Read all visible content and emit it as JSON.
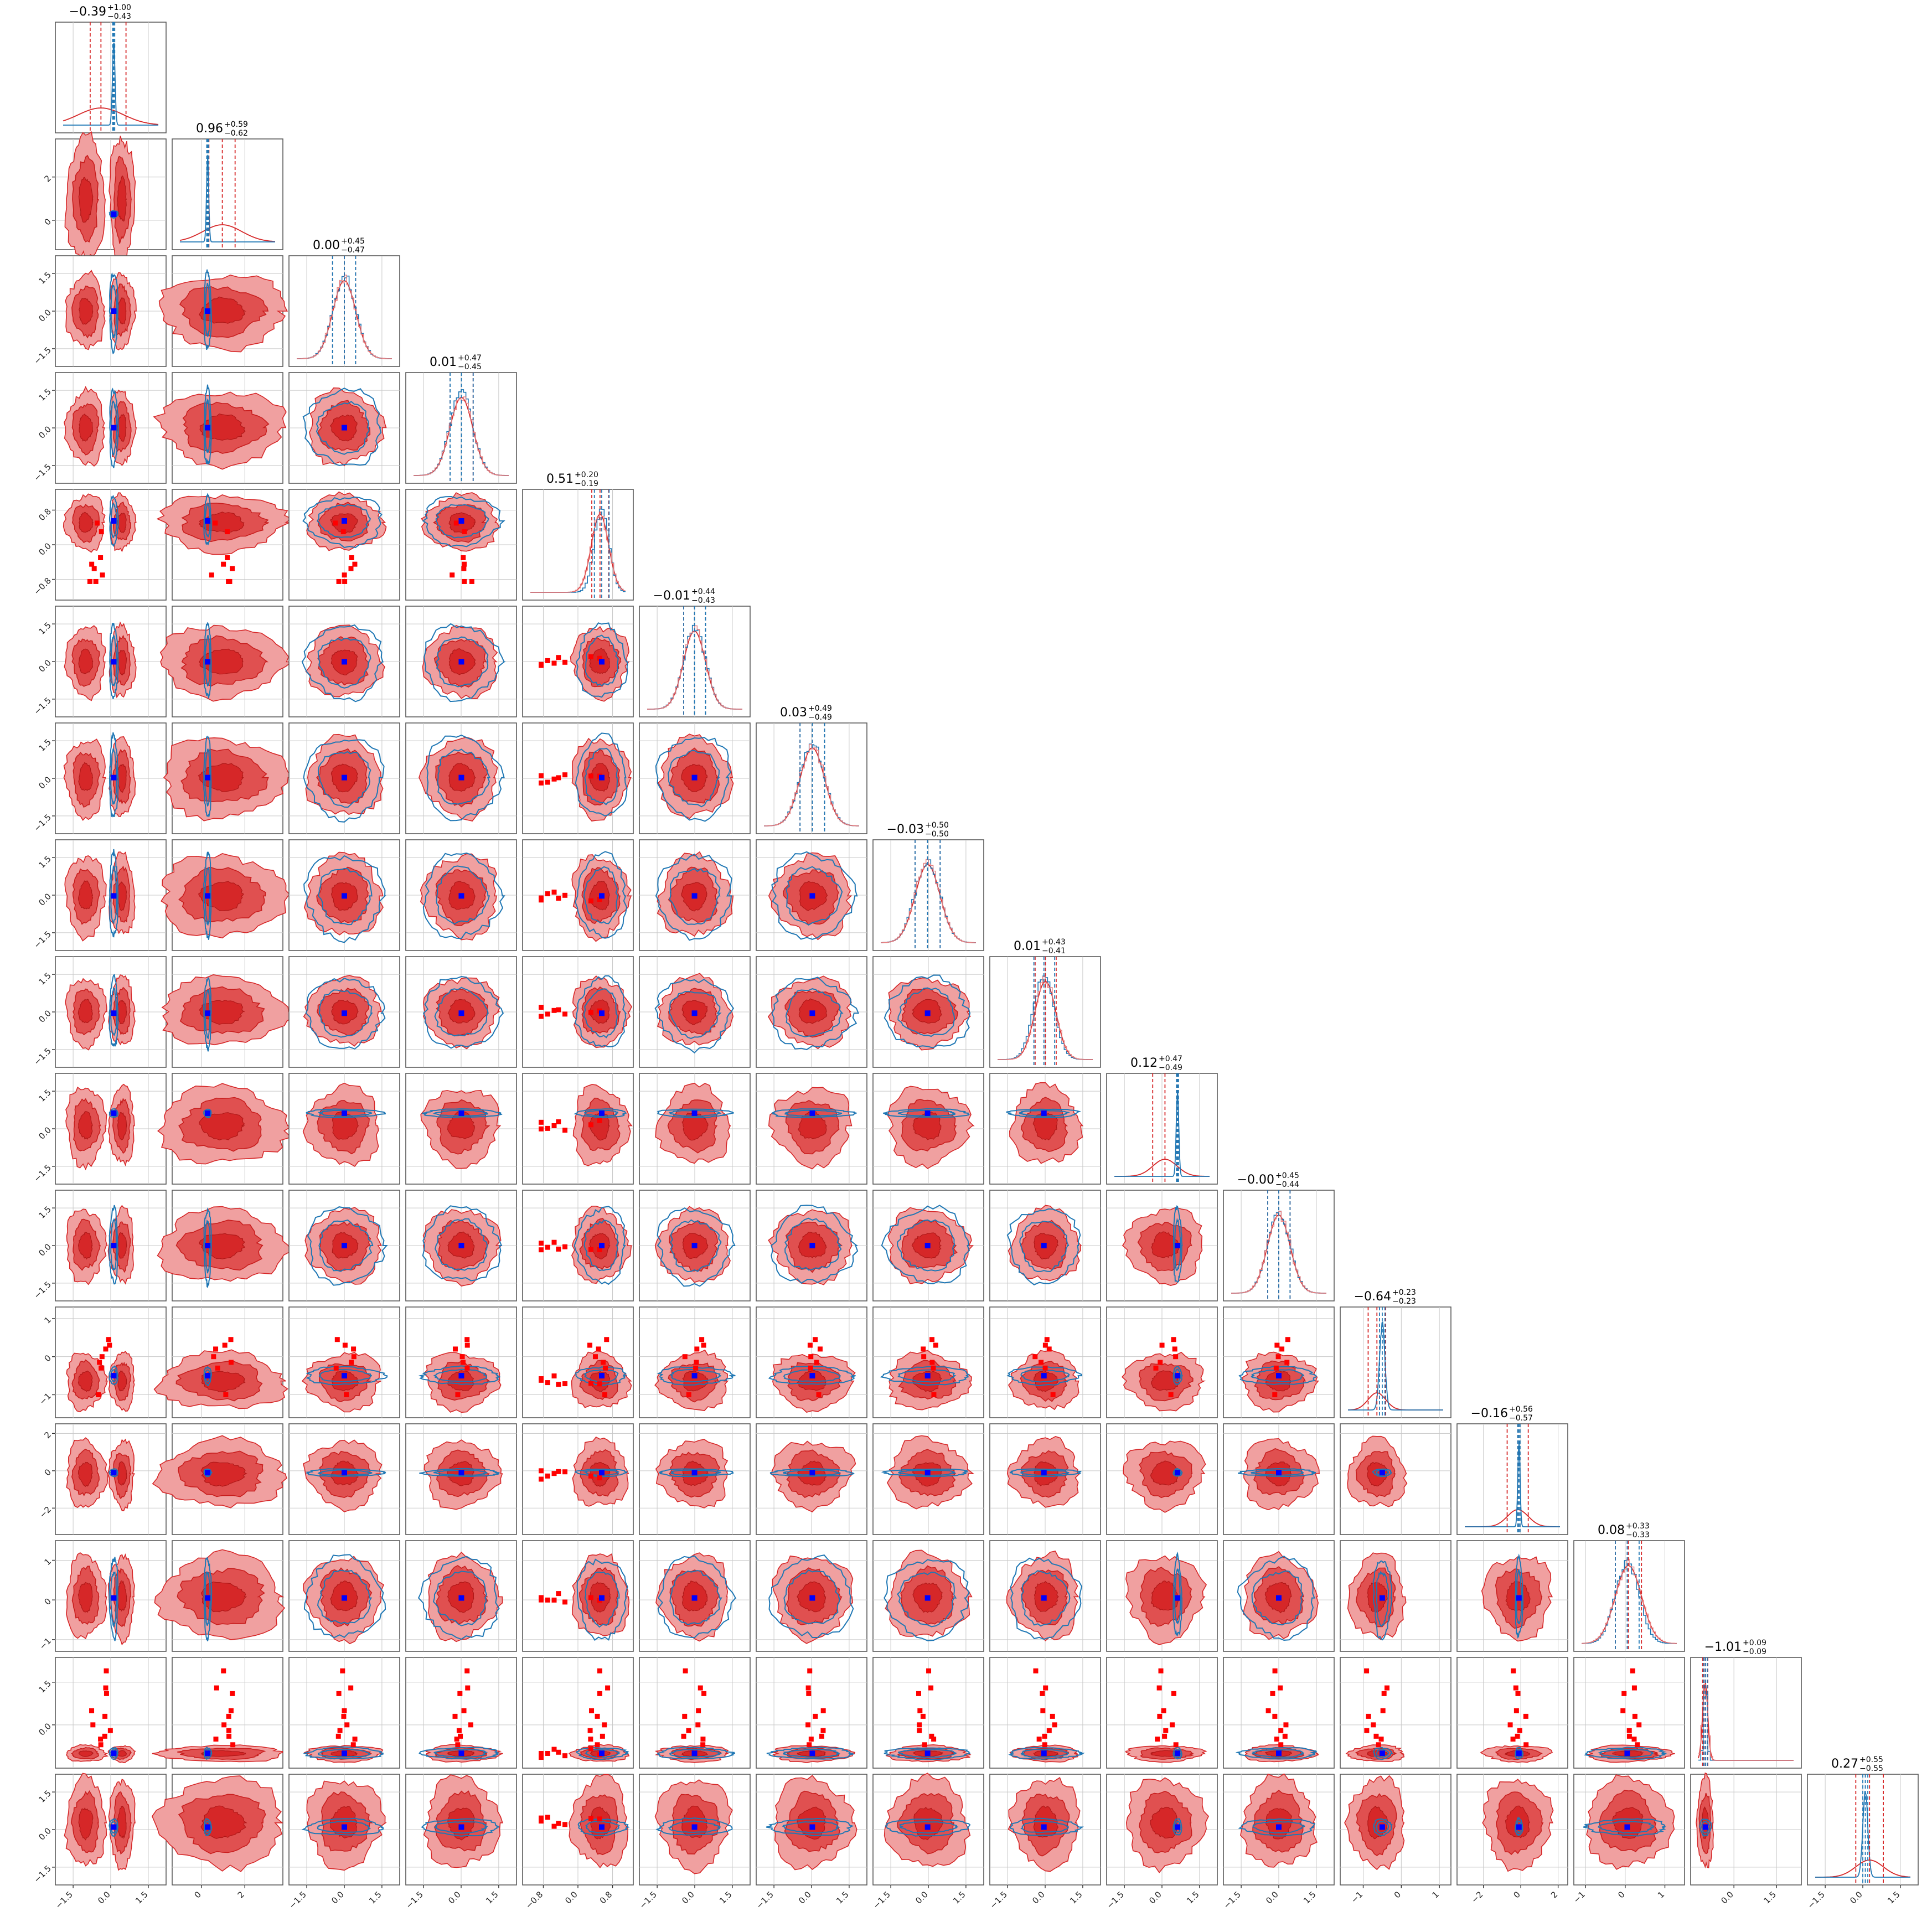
{
  "chart_data": {
    "type": "corner",
    "grid": true,
    "n_params": 16,
    "colors": {
      "posterior_red": "#d62728",
      "posterior_red_fill": "#f0a0a0",
      "posterior_blue": "#1f77b4",
      "truth_marker": "#0000ff",
      "outlier_marker": "#ff0000",
      "quantile_line_red": "#d62728",
      "quantile_line_blue": "#1f77b4"
    },
    "params": [
      {
        "median": -0.39,
        "plus": 1.0,
        "minus": 0.43,
        "title_median": "−0.39",
        "title_plus": "+1.00",
        "title_minus": "−0.43",
        "red": {
          "center": -0.39,
          "sd": 0.9,
          "bimodal": [
            -1.0,
            0.2
          ]
        },
        "blue": {
          "center": 0.12,
          "sd": 0.05
        },
        "quantiles_red": [
          -0.82,
          -0.39,
          0.61
        ],
        "quantiles_blue": [
          0.08,
          0.12,
          0.16
        ],
        "range": [
          -1.9,
          1.9
        ],
        "ticks": [
          "−1.5",
          "0.0",
          "1.5"
        ],
        "tick_values": [
          -1.5,
          0.0,
          1.5
        ]
      },
      {
        "median": 0.96,
        "plus": 0.59,
        "minus": 0.62,
        "title_median": "0.96",
        "title_plus": "+0.59",
        "title_minus": "−0.62",
        "red": {
          "center": 0.96,
          "sd": 0.9
        },
        "blue": {
          "center": 0.28,
          "sd": 0.05
        },
        "quantiles_red": [
          0.34,
          0.96,
          1.55
        ],
        "quantiles_blue": [
          0.24,
          0.28,
          0.32
        ],
        "range": [
          -1.0,
          3.4
        ],
        "ticks": [
          "0",
          "2"
        ],
        "tick_values": [
          0,
          2
        ]
      },
      {
        "median": 0.0,
        "plus": 0.45,
        "minus": 0.47,
        "title_median": "0.00",
        "title_plus": "+0.45",
        "title_minus": "−0.47",
        "red": {
          "center": 0.0,
          "sd": 0.46
        },
        "blue": {
          "center": 0.0,
          "sd": 0.46
        },
        "quantiles_red": [
          -0.47,
          0.0,
          0.45
        ],
        "quantiles_blue": [
          -0.47,
          0.0,
          0.45
        ],
        "range": [
          -1.9,
          1.9
        ],
        "ticks": [
          "−1.5",
          "0.0",
          "1.5"
        ],
        "tick_values": [
          -1.5,
          0.0,
          1.5
        ]
      },
      {
        "median": 0.01,
        "plus": 0.47,
        "minus": 0.45,
        "title_median": "0.01",
        "title_plus": "+0.47",
        "title_minus": "−0.45",
        "red": {
          "center": 0.01,
          "sd": 0.46
        },
        "blue": {
          "center": 0.01,
          "sd": 0.46
        },
        "quantiles_red": [
          -0.44,
          0.01,
          0.48
        ],
        "quantiles_blue": [
          -0.44,
          0.01,
          0.48
        ],
        "range": [
          -1.9,
          1.9
        ],
        "ticks": [
          "−1.5",
          "0.0",
          "1.5"
        ],
        "tick_values": [
          -1.5,
          0.0,
          1.5
        ]
      },
      {
        "median": 0.51,
        "plus": 0.2,
        "minus": 0.19,
        "title_median": "0.51",
        "title_plus": "+0.20",
        "title_minus": "−0.19",
        "red": {
          "center": 0.51,
          "sd": 0.2
        },
        "blue": {
          "center": 0.55,
          "sd": 0.17
        },
        "quantiles_red": [
          0.32,
          0.51,
          0.71
        ],
        "quantiles_blue": [
          0.38,
          0.55,
          0.72
        ],
        "range": [
          -1.1,
          1.1
        ],
        "ticks": [
          "−0.8",
          "0.0",
          "0.8"
        ],
        "tick_values": [
          -0.8,
          0.0,
          0.8
        ]
      },
      {
        "median": -0.01,
        "plus": 0.44,
        "minus": 0.43,
        "title_median": "−0.01",
        "title_plus": "+0.44",
        "title_minus": "−0.43",
        "red": {
          "center": -0.01,
          "sd": 0.44
        },
        "blue": {
          "center": -0.01,
          "sd": 0.44
        },
        "quantiles_red": [
          -0.44,
          -0.01,
          0.43
        ],
        "quantiles_blue": [
          -0.44,
          -0.01,
          0.43
        ],
        "range": [
          -1.9,
          1.9
        ],
        "ticks": [
          "−1.5",
          "0.0",
          "1.5"
        ],
        "tick_values": [
          -1.5,
          0.0,
          1.5
        ]
      },
      {
        "median": 0.03,
        "plus": 0.49,
        "minus": 0.49,
        "title_median": "0.03",
        "title_plus": "+0.49",
        "title_minus": "−0.49",
        "red": {
          "center": 0.03,
          "sd": 0.49
        },
        "blue": {
          "center": 0.03,
          "sd": 0.49
        },
        "quantiles_red": [
          -0.46,
          0.03,
          0.52
        ],
        "quantiles_blue": [
          -0.46,
          0.03,
          0.52
        ],
        "range": [
          -1.9,
          1.9
        ],
        "ticks": [
          "−1.5",
          "0.0",
          "1.5"
        ],
        "tick_values": [
          -1.5,
          0.0,
          1.5
        ]
      },
      {
        "median": -0.03,
        "plus": 0.5,
        "minus": 0.5,
        "title_median": "−0.03",
        "title_plus": "+0.50",
        "title_minus": "−0.50",
        "red": {
          "center": -0.03,
          "sd": 0.5
        },
        "blue": {
          "center": -0.03,
          "sd": 0.5
        },
        "quantiles_red": [
          -0.53,
          -0.03,
          0.47
        ],
        "quantiles_blue": [
          -0.53,
          -0.03,
          0.47
        ],
        "range": [
          -1.9,
          1.9
        ],
        "ticks": [
          "−1.5",
          "0.0",
          "1.5"
        ],
        "tick_values": [
          -1.5,
          0.0,
          1.5
        ]
      },
      {
        "median": 0.01,
        "plus": 0.43,
        "minus": 0.41,
        "title_median": "0.01",
        "title_plus": "+0.43",
        "title_minus": "−0.41",
        "red": {
          "center": 0.01,
          "sd": 0.42
        },
        "blue": {
          "center": -0.05,
          "sd": 0.42
        },
        "quantiles_red": [
          -0.4,
          0.01,
          0.44
        ],
        "quantiles_blue": [
          -0.45,
          -0.05,
          0.38
        ],
        "range": [
          -1.9,
          1.9
        ],
        "ticks": [
          "−1.5",
          "0.0",
          "1.5"
        ],
        "tick_values": [
          -1.5,
          0.0,
          1.5
        ]
      },
      {
        "median": 0.12,
        "plus": 0.47,
        "minus": 0.49,
        "title_median": "0.12",
        "title_plus": "+0.47",
        "title_minus": "−0.49",
        "red": {
          "center": 0.12,
          "sd": 0.48
        },
        "blue": {
          "center": 0.62,
          "sd": 0.05
        },
        "quantiles_red": [
          -0.37,
          0.12,
          0.59
        ],
        "quantiles_blue": [
          0.58,
          0.62,
          0.66
        ],
        "range": [
          -1.9,
          1.9
        ],
        "ticks": [
          "−1.5",
          "0.0",
          "1.5"
        ],
        "tick_values": [
          -1.5,
          0.0,
          1.5
        ]
      },
      {
        "median": -0.0,
        "plus": 0.45,
        "minus": 0.44,
        "title_median": "−0.00",
        "title_plus": "+0.45",
        "title_minus": "−0.44",
        "red": {
          "center": 0.0,
          "sd": 0.45
        },
        "blue": {
          "center": 0.0,
          "sd": 0.45
        },
        "quantiles_red": [
          -0.44,
          0.0,
          0.45
        ],
        "quantiles_blue": [
          -0.44,
          0.0,
          0.45
        ],
        "range": [
          -1.9,
          1.9
        ],
        "ticks": [
          "−1.5",
          "0.0",
          "1.5"
        ],
        "tick_values": [
          -1.5,
          0.0,
          1.5
        ]
      },
      {
        "median": -0.64,
        "plus": 0.23,
        "minus": 0.23,
        "title_median": "−0.64",
        "title_plus": "+0.23",
        "title_minus": "−0.23",
        "red": {
          "center": -0.64,
          "sd": 0.23
        },
        "blue": {
          "center": -0.5,
          "sd": 0.07
        },
        "quantiles_red": [
          -0.87,
          -0.64,
          -0.41
        ],
        "quantiles_blue": [
          -0.57,
          -0.5,
          -0.43
        ],
        "range": [
          -1.4,
          1.1
        ],
        "ticks": [
          "−1",
          "0",
          "1"
        ],
        "tick_values": [
          -1,
          0,
          1
        ]
      },
      {
        "median": -0.16,
        "plus": 0.56,
        "minus": 0.57,
        "title_median": "−0.16",
        "title_plus": "+0.56",
        "title_minus": "−0.57",
        "red": {
          "center": -0.16,
          "sd": 0.56
        },
        "blue": {
          "center": -0.1,
          "sd": 0.06
        },
        "quantiles_red": [
          -0.73,
          -0.16,
          0.4
        ],
        "quantiles_blue": [
          -0.16,
          -0.1,
          -0.04
        ],
        "range": [
          -3.0,
          2.1
        ],
        "ticks": [
          "−2",
          "0",
          "2"
        ],
        "tick_values": [
          -2,
          0,
          2
        ]
      },
      {
        "median": 0.08,
        "plus": 0.33,
        "minus": 0.33,
        "title_median": "0.08",
        "title_plus": "+0.33",
        "title_minus": "−0.33",
        "red": {
          "center": 0.08,
          "sd": 0.33
        },
        "blue": {
          "center": 0.05,
          "sd": 0.3
        },
        "quantiles_red": [
          -0.25,
          0.08,
          0.41
        ],
        "quantiles_blue": [
          -0.25,
          0.05,
          0.35
        ],
        "range": [
          -1.1,
          1.3
        ],
        "ticks": [
          "−1",
          "0",
          "1"
        ],
        "tick_values": [
          -1,
          0,
          1
        ]
      },
      {
        "median": -1.01,
        "plus": 0.09,
        "minus": 0.09,
        "title_median": "−1.01",
        "title_plus": "+0.09",
        "title_minus": "−0.09",
        "red": {
          "center": -1.01,
          "sd": 0.09
        },
        "blue": {
          "center": -1.0,
          "sd": 0.06
        },
        "quantiles_red": [
          -1.1,
          -1.01,
          -0.92
        ],
        "quantiles_blue": [
          -1.06,
          -1.0,
          -0.94
        ],
        "range": [
          -1.25,
          2.1
        ],
        "ticks": [
          "0.0",
          "1.5"
        ],
        "tick_values": [
          0.0,
          1.5
        ]
      },
      {
        "median": 0.27,
        "plus": 0.55,
        "minus": 0.55,
        "title_median": "0.27",
        "title_plus": "+0.55",
        "title_minus": "−0.55",
        "red": {
          "center": 0.27,
          "sd": 0.55
        },
        "blue": {
          "center": 0.1,
          "sd": 0.1
        },
        "quantiles_red": [
          -0.28,
          0.27,
          0.82
        ],
        "quantiles_blue": [
          0.0,
          0.1,
          0.2
        ],
        "range": [
          -1.9,
          1.9
        ],
        "ticks": [
          "−1.5",
          "0.0",
          "1.5"
        ],
        "tick_values": [
          -1.5,
          0.0,
          1.5
        ]
      }
    ],
    "truth_points": [
      0.12,
      0.28,
      0.0,
      0.01,
      0.55,
      -0.01,
      0.03,
      -0.03,
      -0.05,
      0.62,
      0.0,
      -0.5,
      -0.1,
      0.05,
      -1.0,
      0.1
    ],
    "outliers_param4": [
      -0.85,
      -0.85,
      -0.7,
      -0.55,
      -0.45,
      -0.3,
      0.3,
      0.5
    ],
    "outliers_param14": [
      1.9,
      1.3,
      1.1,
      0.5,
      0.3,
      0.0,
      -0.2,
      -0.4,
      -0.5,
      -0.7
    ],
    "outliers_param11": [
      0.2,
      0.0,
      -0.15,
      0.3,
      0.45,
      -0.3,
      -1.0
    ]
  }
}
